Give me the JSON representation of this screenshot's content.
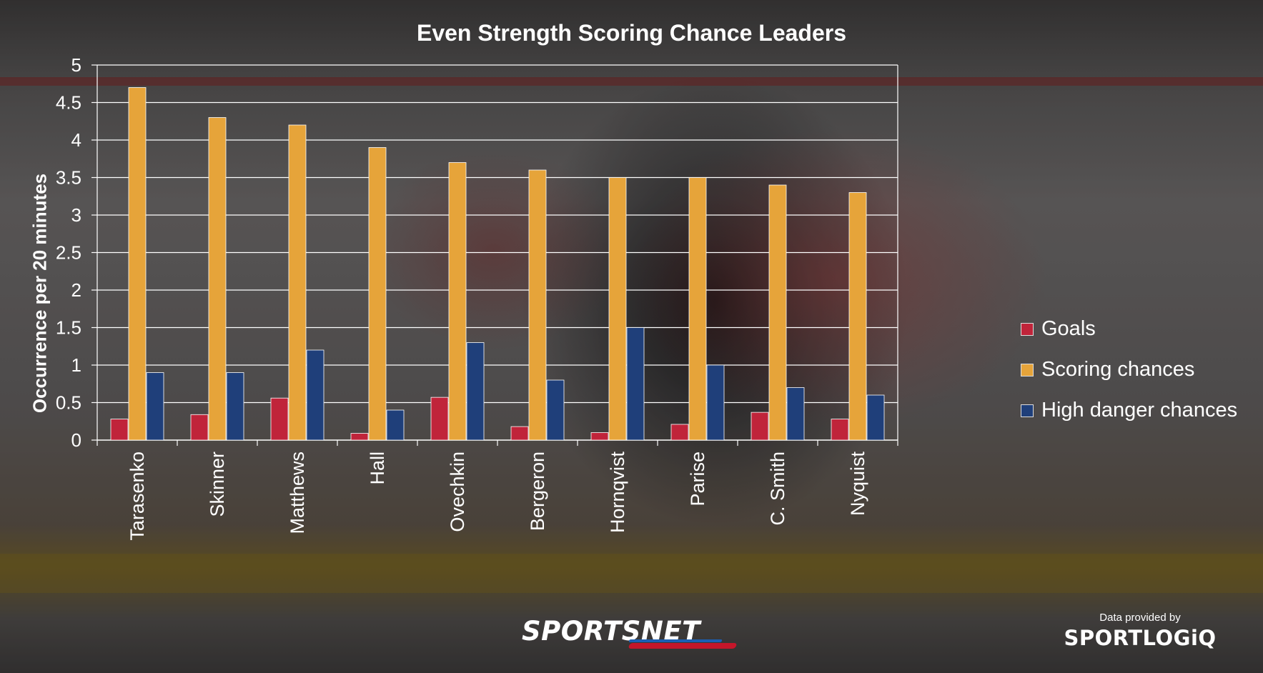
{
  "chart_data": {
    "type": "bar",
    "title": "Even Strength Scoring Chance Leaders",
    "ylabel": "Occurrence per 20 minutes",
    "xlabel": "",
    "ylim": [
      0,
      5
    ],
    "yticks": [
      "0",
      "0.5",
      "1",
      "1.5",
      "2",
      "2.5",
      "3",
      "3.5",
      "4",
      "4.5",
      "5"
    ],
    "grid": true,
    "legend_position": "right",
    "categories": [
      "Tarasenko",
      "Skinner",
      "Matthews",
      "Hall",
      "Ovechkin",
      "Bergeron",
      "Hornqvist",
      "Parise",
      "C. Smith",
      "Nyquist"
    ],
    "series": [
      {
        "name": "Goals",
        "color": "#c0243a",
        "values": [
          0.28,
          0.34,
          0.56,
          0.09,
          0.57,
          0.18,
          0.1,
          0.21,
          0.37,
          0.28
        ]
      },
      {
        "name": "Scoring chances",
        "color": "#e6a43a",
        "values": [
          4.7,
          4.3,
          4.2,
          3.9,
          3.7,
          3.6,
          3.5,
          3.5,
          3.4,
          3.3
        ]
      },
      {
        "name": "High danger chances",
        "color": "#1f3f7a",
        "values": [
          0.9,
          0.9,
          1.2,
          0.4,
          1.3,
          0.8,
          1.5,
          1.0,
          0.7,
          0.6
        ]
      }
    ]
  },
  "branding": {
    "logo_text": "SPORTSNET",
    "credit_prefix": "Data provided by",
    "credit_logo": "SPORTLOGiQ"
  }
}
